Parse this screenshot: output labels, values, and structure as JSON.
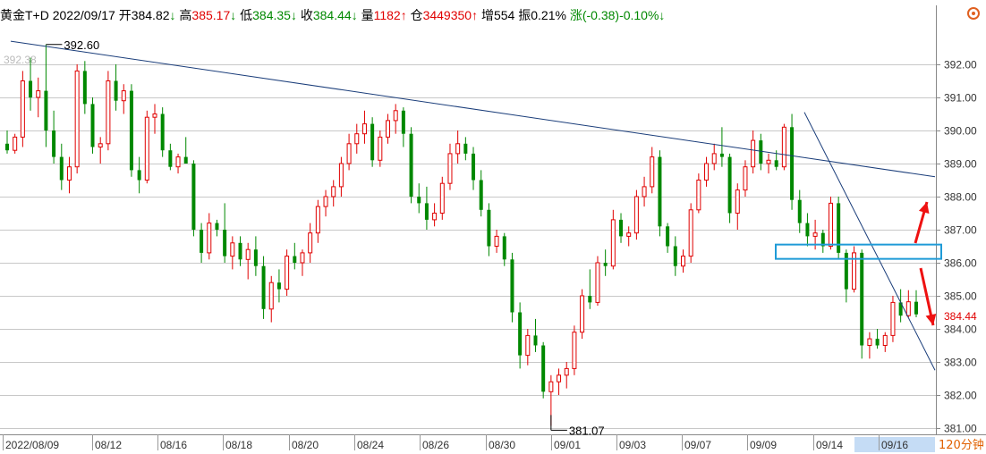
{
  "header": {
    "symbol": "黄金T+D",
    "date": "2022/09/17",
    "open_label": "开",
    "open_value": "384.82",
    "open_arrow": "↓",
    "high_label": "高",
    "high_value": "385.17",
    "high_arrow": "↓",
    "low_label": "低",
    "low_value": "384.35",
    "low_arrow": "↓",
    "close_label": "收",
    "close_value": "384.44",
    "close_arrow": "↓",
    "volume_label": "量",
    "volume_value": "1182",
    "volume_arrow": "↑",
    "oi_label": "仓",
    "oi_value": "3449350",
    "oi_arrow": "↑",
    "increase_label": "增",
    "increase_value": "554",
    "amplitude_label": "振",
    "amplitude_value": "0.21%",
    "change_label": "涨",
    "change_value": "(-0.38)",
    "change_pct": "-0.10%",
    "change_arrow": "↓"
  },
  "period_label": "120分钟",
  "colors": {
    "up": "#e00000",
    "down": "#008800",
    "trendline": "#1a3d7a",
    "box": "#1f9bd7",
    "arrow": "#ee1111",
    "grid": "#c8c8c8",
    "last_price": "#e00000"
  },
  "icons": {
    "settings": "gear-icon"
  },
  "chart_data": {
    "type": "candlestick",
    "y_ticks": [
      "381.00",
      "382.00",
      "383.00",
      "384.00",
      "385.00",
      "386.00",
      "387.00",
      "388.00",
      "389.00",
      "390.00",
      "391.00",
      "392.00"
    ],
    "ylim": [
      380.9,
      393.0
    ],
    "x_ticks": [
      "2022/08/09",
      "08/12",
      "08/16",
      "08/18",
      "08/20",
      "08/24",
      "08/26",
      "08/30",
      "09/01",
      "09/03",
      "09/07",
      "09/09",
      "09/14",
      "09/16"
    ],
    "highlighted_x_tick": "09/16",
    "last_price": "384.44",
    "annotations": {
      "max_label": "392.60",
      "max_value": 392.6,
      "min_label": "381.07",
      "min_value": 381.07,
      "faint_top_label": "392.38"
    },
    "candles": [
      {
        "o": 389.6,
        "h": 390.0,
        "l": 389.3,
        "c": 389.4
      },
      {
        "o": 389.4,
        "h": 389.9,
        "l": 389.3,
        "c": 389.8
      },
      {
        "o": 389.8,
        "h": 391.8,
        "l": 389.5,
        "c": 391.5
      },
      {
        "o": 391.5,
        "h": 392.2,
        "l": 390.6,
        "c": 391.0
      },
      {
        "o": 391.0,
        "h": 391.6,
        "l": 390.4,
        "c": 391.2
      },
      {
        "o": 391.2,
        "h": 392.6,
        "l": 389.5,
        "c": 390.0
      },
      {
        "o": 390.0,
        "h": 390.6,
        "l": 389.0,
        "c": 389.2
      },
      {
        "o": 389.2,
        "h": 389.6,
        "l": 388.2,
        "c": 388.5
      },
      {
        "o": 388.5,
        "h": 389.2,
        "l": 388.1,
        "c": 388.9
      },
      {
        "o": 388.9,
        "h": 392.0,
        "l": 388.7,
        "c": 391.8
      },
      {
        "o": 391.8,
        "h": 392.1,
        "l": 390.5,
        "c": 390.8
      },
      {
        "o": 390.8,
        "h": 391.0,
        "l": 389.3,
        "c": 389.5
      },
      {
        "o": 389.5,
        "h": 389.8,
        "l": 389.0,
        "c": 389.6
      },
      {
        "o": 389.6,
        "h": 391.8,
        "l": 389.4,
        "c": 391.5
      },
      {
        "o": 391.5,
        "h": 392.0,
        "l": 390.6,
        "c": 390.9
      },
      {
        "o": 390.9,
        "h": 391.4,
        "l": 390.5,
        "c": 391.2
      },
      {
        "o": 391.2,
        "h": 391.4,
        "l": 388.6,
        "c": 388.8
      },
      {
        "o": 388.8,
        "h": 389.2,
        "l": 388.1,
        "c": 388.5
      },
      {
        "o": 388.5,
        "h": 390.6,
        "l": 388.4,
        "c": 390.4
      },
      {
        "o": 390.4,
        "h": 390.8,
        "l": 389.9,
        "c": 390.5
      },
      {
        "o": 390.5,
        "h": 390.7,
        "l": 389.2,
        "c": 389.4
      },
      {
        "o": 389.4,
        "h": 389.6,
        "l": 388.8,
        "c": 388.9
      },
      {
        "o": 388.9,
        "h": 389.3,
        "l": 388.7,
        "c": 389.2
      },
      {
        "o": 389.2,
        "h": 389.8,
        "l": 389.0,
        "c": 389.0
      },
      {
        "o": 389.0,
        "h": 389.1,
        "l": 386.8,
        "c": 387.0
      },
      {
        "o": 387.0,
        "h": 387.2,
        "l": 386.0,
        "c": 386.3
      },
      {
        "o": 386.3,
        "h": 387.5,
        "l": 386.1,
        "c": 387.2
      },
      {
        "o": 387.2,
        "h": 387.3,
        "l": 386.8,
        "c": 387.0
      },
      {
        "o": 387.0,
        "h": 387.8,
        "l": 386.0,
        "c": 386.2
      },
      {
        "o": 386.2,
        "h": 386.8,
        "l": 385.8,
        "c": 386.6
      },
      {
        "o": 386.6,
        "h": 386.8,
        "l": 385.9,
        "c": 386.1
      },
      {
        "o": 386.1,
        "h": 386.6,
        "l": 385.5,
        "c": 386.4
      },
      {
        "o": 386.4,
        "h": 386.8,
        "l": 385.6,
        "c": 385.9
      },
      {
        "o": 385.9,
        "h": 386.2,
        "l": 384.3,
        "c": 384.6
      },
      {
        "o": 384.6,
        "h": 385.6,
        "l": 384.2,
        "c": 385.4
      },
      {
        "o": 385.4,
        "h": 385.8,
        "l": 384.8,
        "c": 385.2
      },
      {
        "o": 385.2,
        "h": 386.4,
        "l": 385.0,
        "c": 386.2
      },
      {
        "o": 386.2,
        "h": 386.6,
        "l": 385.8,
        "c": 386.0
      },
      {
        "o": 386.0,
        "h": 386.4,
        "l": 385.6,
        "c": 386.3
      },
      {
        "o": 386.3,
        "h": 387.2,
        "l": 386.0,
        "c": 386.9
      },
      {
        "o": 386.9,
        "h": 387.9,
        "l": 386.6,
        "c": 387.7
      },
      {
        "o": 387.7,
        "h": 388.2,
        "l": 387.4,
        "c": 388.0
      },
      {
        "o": 388.0,
        "h": 388.5,
        "l": 387.7,
        "c": 388.3
      },
      {
        "o": 388.3,
        "h": 389.2,
        "l": 388.0,
        "c": 389.0
      },
      {
        "o": 389.0,
        "h": 389.9,
        "l": 388.8,
        "c": 389.6
      },
      {
        "o": 389.6,
        "h": 390.2,
        "l": 389.3,
        "c": 389.9
      },
      {
        "o": 389.9,
        "h": 390.6,
        "l": 389.6,
        "c": 390.2
      },
      {
        "o": 390.2,
        "h": 390.4,
        "l": 388.9,
        "c": 389.1
      },
      {
        "o": 389.1,
        "h": 390.0,
        "l": 388.9,
        "c": 389.8
      },
      {
        "o": 389.8,
        "h": 390.5,
        "l": 389.6,
        "c": 390.3
      },
      {
        "o": 390.3,
        "h": 390.8,
        "l": 389.9,
        "c": 390.6
      },
      {
        "o": 390.6,
        "h": 390.7,
        "l": 389.5,
        "c": 389.9
      },
      {
        "o": 389.9,
        "h": 390.1,
        "l": 387.8,
        "c": 388.0
      },
      {
        "o": 388.0,
        "h": 388.4,
        "l": 387.5,
        "c": 387.8
      },
      {
        "o": 387.8,
        "h": 388.3,
        "l": 387.0,
        "c": 387.3
      },
      {
        "o": 387.3,
        "h": 387.8,
        "l": 387.1,
        "c": 387.5
      },
      {
        "o": 387.5,
        "h": 388.6,
        "l": 387.3,
        "c": 388.4
      },
      {
        "o": 388.4,
        "h": 389.6,
        "l": 388.2,
        "c": 389.3
      },
      {
        "o": 389.3,
        "h": 390.0,
        "l": 389.0,
        "c": 389.6
      },
      {
        "o": 389.6,
        "h": 389.8,
        "l": 389.1,
        "c": 389.3
      },
      {
        "o": 389.3,
        "h": 389.5,
        "l": 388.2,
        "c": 388.5
      },
      {
        "o": 388.5,
        "h": 388.8,
        "l": 387.4,
        "c": 387.6
      },
      {
        "o": 387.6,
        "h": 387.8,
        "l": 386.2,
        "c": 386.5
      },
      {
        "o": 386.5,
        "h": 387.0,
        "l": 386.3,
        "c": 386.8
      },
      {
        "o": 386.8,
        "h": 386.9,
        "l": 385.9,
        "c": 386.1
      },
      {
        "o": 386.1,
        "h": 386.3,
        "l": 384.2,
        "c": 384.5
      },
      {
        "o": 384.5,
        "h": 384.8,
        "l": 382.8,
        "c": 383.2
      },
      {
        "o": 383.2,
        "h": 384.0,
        "l": 382.9,
        "c": 383.8
      },
      {
        "o": 383.8,
        "h": 384.3,
        "l": 383.3,
        "c": 383.5
      },
      {
        "o": 383.5,
        "h": 383.6,
        "l": 381.9,
        "c": 382.1
      },
      {
        "o": 382.1,
        "h": 382.6,
        "l": 381.07,
        "c": 382.4
      },
      {
        "o": 382.4,
        "h": 382.8,
        "l": 382.0,
        "c": 382.6
      },
      {
        "o": 382.6,
        "h": 383.0,
        "l": 382.2,
        "c": 382.8
      },
      {
        "o": 382.8,
        "h": 384.1,
        "l": 382.6,
        "c": 383.9
      },
      {
        "o": 383.9,
        "h": 385.2,
        "l": 383.7,
        "c": 385.0
      },
      {
        "o": 385.0,
        "h": 385.8,
        "l": 384.6,
        "c": 384.8
      },
      {
        "o": 384.8,
        "h": 386.2,
        "l": 384.7,
        "c": 386.0
      },
      {
        "o": 386.0,
        "h": 386.4,
        "l": 385.6,
        "c": 385.9
      },
      {
        "o": 385.9,
        "h": 387.6,
        "l": 385.8,
        "c": 387.3
      },
      {
        "o": 387.3,
        "h": 387.5,
        "l": 386.6,
        "c": 386.8
      },
      {
        "o": 386.8,
        "h": 387.1,
        "l": 386.5,
        "c": 386.9
      },
      {
        "o": 386.9,
        "h": 388.2,
        "l": 386.7,
        "c": 388.0
      },
      {
        "o": 388.0,
        "h": 388.6,
        "l": 387.7,
        "c": 388.3
      },
      {
        "o": 388.3,
        "h": 389.5,
        "l": 388.1,
        "c": 389.2
      },
      {
        "o": 389.2,
        "h": 389.4,
        "l": 386.8,
        "c": 387.1
      },
      {
        "o": 387.1,
        "h": 387.2,
        "l": 386.3,
        "c": 386.5
      },
      {
        "o": 386.5,
        "h": 386.8,
        "l": 385.6,
        "c": 385.9
      },
      {
        "o": 385.9,
        "h": 386.4,
        "l": 385.7,
        "c": 386.2
      },
      {
        "o": 386.2,
        "h": 387.8,
        "l": 386.0,
        "c": 387.6
      },
      {
        "o": 387.6,
        "h": 388.7,
        "l": 387.5,
        "c": 388.5
      },
      {
        "o": 388.5,
        "h": 389.2,
        "l": 388.3,
        "c": 389.0
      },
      {
        "o": 389.0,
        "h": 389.6,
        "l": 388.8,
        "c": 389.3
      },
      {
        "o": 389.3,
        "h": 390.1,
        "l": 388.9,
        "c": 389.2
      },
      {
        "o": 389.2,
        "h": 389.3,
        "l": 387.2,
        "c": 387.5
      },
      {
        "o": 387.5,
        "h": 388.4,
        "l": 387.0,
        "c": 388.2
      },
      {
        "o": 388.2,
        "h": 389.1,
        "l": 388.0,
        "c": 388.9
      },
      {
        "o": 388.9,
        "h": 390.0,
        "l": 388.7,
        "c": 389.7
      },
      {
        "o": 389.7,
        "h": 389.9,
        "l": 388.8,
        "c": 389.0
      },
      {
        "o": 389.0,
        "h": 389.3,
        "l": 388.7,
        "c": 389.1
      },
      {
        "o": 389.1,
        "h": 389.4,
        "l": 388.8,
        "c": 388.9
      },
      {
        "o": 388.9,
        "h": 390.2,
        "l": 388.8,
        "c": 390.1
      },
      {
        "o": 390.1,
        "h": 390.5,
        "l": 387.6,
        "c": 387.9
      },
      {
        "o": 387.9,
        "h": 388.2,
        "l": 386.9,
        "c": 387.2
      },
      {
        "o": 387.2,
        "h": 387.5,
        "l": 386.5,
        "c": 386.8
      },
      {
        "o": 386.8,
        "h": 387.3,
        "l": 386.4,
        "c": 386.9
      },
      {
        "o": 386.9,
        "h": 387.0,
        "l": 386.3,
        "c": 386.5
      },
      {
        "o": 386.5,
        "h": 388.0,
        "l": 386.4,
        "c": 387.8
      },
      {
        "o": 387.8,
        "h": 388.0,
        "l": 386.1,
        "c": 386.3
      },
      {
        "o": 386.3,
        "h": 386.4,
        "l": 384.8,
        "c": 385.2
      },
      {
        "o": 385.2,
        "h": 386.5,
        "l": 385.1,
        "c": 386.3
      },
      {
        "o": 386.3,
        "h": 386.4,
        "l": 383.1,
        "c": 383.5
      },
      {
        "o": 383.5,
        "h": 383.9,
        "l": 383.1,
        "c": 383.7
      },
      {
        "o": 383.7,
        "h": 384.0,
        "l": 383.4,
        "c": 383.5
      },
      {
        "o": 383.5,
        "h": 383.9,
        "l": 383.3,
        "c": 383.8
      },
      {
        "o": 383.8,
        "h": 385.0,
        "l": 383.6,
        "c": 384.8
      },
      {
        "o": 384.8,
        "h": 385.2,
        "l": 384.2,
        "c": 384.4
      },
      {
        "o": 384.4,
        "h": 385.17,
        "l": 384.35,
        "c": 384.82
      },
      {
        "o": 384.82,
        "h": 385.17,
        "l": 384.35,
        "c": 384.44
      }
    ]
  }
}
